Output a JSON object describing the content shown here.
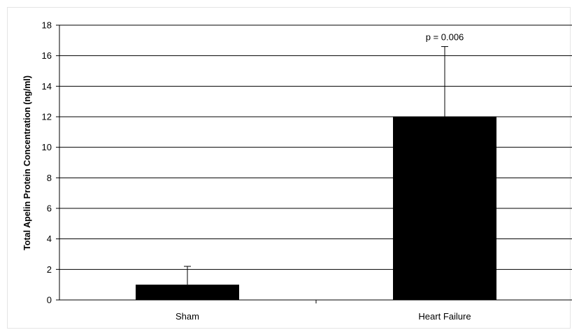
{
  "chart_data": {
    "type": "bar",
    "title": "",
    "xlabel": "",
    "ylabel": "Total Apelin Protein Concentration (ng/ml)",
    "ylim": [
      0,
      18
    ],
    "y_ticks": [
      0,
      2,
      4,
      6,
      8,
      10,
      12,
      14,
      16,
      18
    ],
    "grid": true,
    "legend": "none",
    "categories": [
      "Sham",
      "Heart Failure"
    ],
    "series": [
      {
        "values": [
          1.0,
          12.0
        ],
        "error_upper": [
          1.2,
          4.6
        ],
        "color": "#000000"
      }
    ],
    "annotations": [
      {
        "category": "Heart Failure",
        "text": "p = 0.006"
      }
    ]
  }
}
